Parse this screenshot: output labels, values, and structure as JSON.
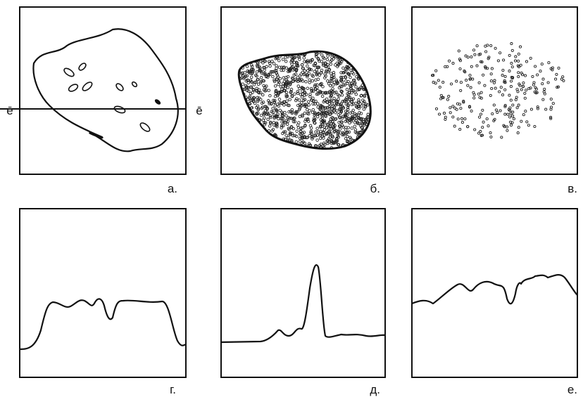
{
  "panels": [
    {
      "label": "а."
    },
    {
      "label": "б."
    },
    {
      "label": "в."
    },
    {
      "label": "г."
    },
    {
      "label": "д."
    },
    {
      "label": "е."
    }
  ],
  "section_labels": [
    "е̄",
    "е̄"
  ]
}
